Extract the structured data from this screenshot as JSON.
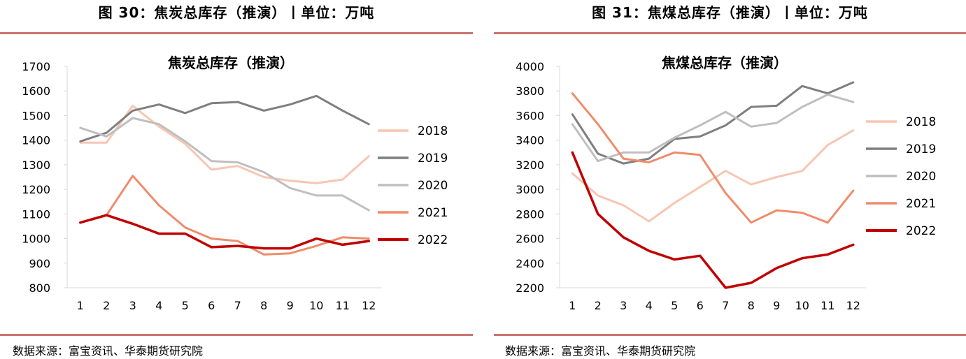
{
  "figures": [
    {
      "title": "图 30：焦炭总库存（推演）丨单位：万吨",
      "source": "数据来源：富宝资讯、华泰期货研究院"
    },
    {
      "title": "图 31：焦煤总库存（推演）丨单位：万吨",
      "source": "数据来源：富宝资讯、华泰期货研究院"
    }
  ],
  "chart_data": [
    {
      "type": "line",
      "title": "焦炭总库存（推演）",
      "xlabel": "",
      "ylabel": "",
      "categories": [
        "1",
        "2",
        "3",
        "4",
        "5",
        "6",
        "7",
        "8",
        "9",
        "10",
        "11",
        "12"
      ],
      "ylim": [
        800,
        1700
      ],
      "yticks": [
        800,
        900,
        1000,
        1100,
        1200,
        1300,
        1400,
        1500,
        1600,
        1700
      ],
      "grid": false,
      "legend_position": "right",
      "series": [
        {
          "name": "2018",
          "color": "#f7c6b2",
          "width": 3,
          "values": [
            1390,
            1390,
            1540,
            1455,
            1385,
            1280,
            1295,
            1250,
            1235,
            1225,
            1240,
            1335
          ]
        },
        {
          "name": "2019",
          "color": "#7f7f7f",
          "width": 3,
          "values": [
            1395,
            1430,
            1520,
            1545,
            1510,
            1550,
            1555,
            1520,
            1545,
            1580,
            1520,
            1465
          ]
        },
        {
          "name": "2020",
          "color": "#bfbfbf",
          "width": 3,
          "values": [
            1450,
            1415,
            1490,
            1465,
            1395,
            1315,
            1310,
            1270,
            1205,
            1175,
            1175,
            1115
          ]
        },
        {
          "name": "2021",
          "color": "#ef8c6b",
          "width": 3,
          "values": [
            1065,
            1095,
            1255,
            1135,
            1045,
            1000,
            990,
            935,
            940,
            970,
            1005,
            1000
          ]
        },
        {
          "name": "2022",
          "color": "#c00000",
          "width": 3.5,
          "values": [
            1065,
            1095,
            1060,
            1020,
            1020,
            965,
            970,
            960,
            960,
            1000,
            975,
            990
          ]
        }
      ]
    },
    {
      "type": "line",
      "title": "焦煤总库存（推演）",
      "xlabel": "",
      "ylabel": "",
      "categories": [
        "1",
        "2",
        "3",
        "4",
        "5",
        "6",
        "7",
        "8",
        "9",
        "10",
        "11",
        "12"
      ],
      "ylim": [
        2200,
        4000
      ],
      "yticks": [
        2200,
        2400,
        2600,
        2800,
        3000,
        3200,
        3400,
        3600,
        3800,
        4000
      ],
      "grid": false,
      "legend_position": "right",
      "series": [
        {
          "name": "2018",
          "color": "#f7c6b2",
          "width": 3,
          "values": [
            3130,
            2950,
            2870,
            2740,
            2890,
            3020,
            3150,
            3040,
            3100,
            3150,
            3360,
            3480
          ]
        },
        {
          "name": "2019",
          "color": "#7f7f7f",
          "width": 3,
          "values": [
            3610,
            3290,
            3210,
            3250,
            3410,
            3430,
            3520,
            3670,
            3680,
            3840,
            3780,
            3870
          ]
        },
        {
          "name": "2020",
          "color": "#bfbfbf",
          "width": 3,
          "values": [
            3530,
            3230,
            3300,
            3300,
            3420,
            3520,
            3630,
            3510,
            3540,
            3670,
            3770,
            3710
          ]
        },
        {
          "name": "2021",
          "color": "#ef8c6b",
          "width": 3,
          "values": [
            3780,
            3530,
            3250,
            3220,
            3300,
            3280,
            2970,
            2730,
            2830,
            2810,
            2730,
            2990
          ]
        },
        {
          "name": "2022",
          "color": "#c00000",
          "width": 3.5,
          "values": [
            3300,
            2800,
            2610,
            2500,
            2430,
            2460,
            2200,
            2240,
            2360,
            2440,
            2470,
            2550
          ]
        }
      ]
    }
  ]
}
